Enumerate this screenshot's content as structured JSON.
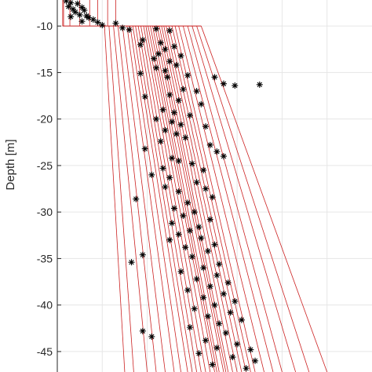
{
  "chart_data": {
    "type": "line",
    "ylabel": "Depth [m]",
    "ylim": [
      -47.2,
      -7.2
    ],
    "y_ticks": [
      -10,
      -15,
      -20,
      -25,
      -30,
      -35,
      -40,
      -45
    ],
    "y_tick_labels": [
      "-10",
      "-15",
      "-20",
      "-25",
      "-30",
      "-35",
      "-40",
      "-45"
    ],
    "grid": true,
    "colors": {
      "profiles": "#cc2222",
      "points": "#000000",
      "grid": "#e6e6e6",
      "axis": "#262626"
    },
    "profiles": {
      "top_layer": {
        "depth_range": [
          -7.2,
          -10
        ],
        "x_left": 0.12,
        "x_right": [
          0.14,
          0.28,
          0.5,
          0.72,
          0.9,
          1.12,
          1.3
        ]
      },
      "break_depth": -10,
      "break_shelf_range": [
        0.12,
        3.2
      ],
      "lower_layer": {
        "depth_range": [
          -10,
          -47.2
        ],
        "x_at_break": [
          1.05,
          1.15,
          1.25,
          1.35,
          1.45,
          1.55,
          1.62,
          1.68,
          1.74,
          1.8,
          1.86,
          1.92,
          1.97,
          2.02,
          2.07,
          2.12,
          2.17,
          2.22,
          2.27,
          2.32,
          2.37,
          2.42,
          2.48,
          2.55,
          2.62,
          2.7,
          2.8,
          2.9,
          3.0,
          3.1,
          3.2
        ],
        "x_at_bottom": [
          1.5,
          1.7,
          2.0,
          2.2,
          2.4,
          2.6,
          2.75,
          2.9,
          3.0,
          3.1,
          3.2,
          3.3,
          3.4,
          3.5,
          3.55,
          3.6,
          3.7,
          3.75,
          3.8,
          3.9,
          4.0,
          4.1,
          4.2,
          4.3,
          4.4,
          4.6,
          4.8,
          5.0,
          5.3,
          5.6,
          6.0
        ]
      }
    },
    "points": [
      {
        "x": 0.2,
        "y": -7.3
      },
      {
        "x": 0.3,
        "y": -7.5
      },
      {
        "x": 0.45,
        "y": -7.6
      },
      {
        "x": 0.25,
        "y": -7.9
      },
      {
        "x": 0.55,
        "y": -8.0
      },
      {
        "x": 0.35,
        "y": -8.2
      },
      {
        "x": 0.6,
        "y": -8.3
      },
      {
        "x": 0.4,
        "y": -8.5
      },
      {
        "x": 0.5,
        "y": -8.8
      },
      {
        "x": 0.65,
        "y": -8.9
      },
      {
        "x": 0.3,
        "y": -9.0
      },
      {
        "x": 0.7,
        "y": -9.1
      },
      {
        "x": 0.8,
        "y": -9.3
      },
      {
        "x": 0.55,
        "y": -9.5
      },
      {
        "x": 0.9,
        "y": -9.6
      },
      {
        "x": 1.0,
        "y": -9.9
      },
      {
        "x": 1.3,
        "y": -9.7
      },
      {
        "x": 1.45,
        "y": -10.2
      },
      {
        "x": 1.6,
        "y": -10.4
      },
      {
        "x": 2.2,
        "y": -10.3
      },
      {
        "x": 2.5,
        "y": -10.5
      },
      {
        "x": 1.9,
        "y": -11.5
      },
      {
        "x": 1.85,
        "y": -12.0
      },
      {
        "x": 2.3,
        "y": -11.8
      },
      {
        "x": 2.4,
        "y": -12.5
      },
      {
        "x": 2.6,
        "y": -12.2
      },
      {
        "x": 2.15,
        "y": -13.5
      },
      {
        "x": 2.25,
        "y": -13.0
      },
      {
        "x": 2.5,
        "y": -13.8
      },
      {
        "x": 2.75,
        "y": -13.2
      },
      {
        "x": 2.2,
        "y": -14.5
      },
      {
        "x": 2.4,
        "y": -14.8
      },
      {
        "x": 2.65,
        "y": -14.2
      },
      {
        "x": 1.85,
        "y": -15.1
      },
      {
        "x": 2.45,
        "y": -15.5
      },
      {
        "x": 2.9,
        "y": -15.3
      },
      {
        "x": 3.5,
        "y": -15.5
      },
      {
        "x": 3.7,
        "y": -16.2
      },
      {
        "x": 3.95,
        "y": -16.4
      },
      {
        "x": 4.5,
        "y": -16.3
      },
      {
        "x": 2.8,
        "y": -16.8
      },
      {
        "x": 3.1,
        "y": -17.0
      },
      {
        "x": 2.5,
        "y": -17.4
      },
      {
        "x": 1.95,
        "y": -17.6
      },
      {
        "x": 2.7,
        "y": -18.0
      },
      {
        "x": 3.2,
        "y": -18.4
      },
      {
        "x": 2.35,
        "y": -19.0
      },
      {
        "x": 2.6,
        "y": -19.3
      },
      {
        "x": 2.95,
        "y": -19.6
      },
      {
        "x": 2.2,
        "y": -20.0
      },
      {
        "x": 2.55,
        "y": -20.3
      },
      {
        "x": 2.75,
        "y": -20.6
      },
      {
        "x": 3.3,
        "y": -20.8
      },
      {
        "x": 2.4,
        "y": -21.2
      },
      {
        "x": 2.65,
        "y": -21.6
      },
      {
        "x": 2.85,
        "y": -22.0
      },
      {
        "x": 2.3,
        "y": -22.4
      },
      {
        "x": 3.4,
        "y": -22.8
      },
      {
        "x": 1.95,
        "y": -23.2
      },
      {
        "x": 3.55,
        "y": -23.5
      },
      {
        "x": 3.7,
        "y": -24.0
      },
      {
        "x": 2.55,
        "y": -24.2
      },
      {
        "x": 2.7,
        "y": -24.5
      },
      {
        "x": 3.0,
        "y": -24.8
      },
      {
        "x": 2.35,
        "y": -25.3
      },
      {
        "x": 3.25,
        "y": -25.5
      },
      {
        "x": 2.1,
        "y": -26.0
      },
      {
        "x": 2.5,
        "y": -26.3
      },
      {
        "x": 3.1,
        "y": -26.8
      },
      {
        "x": 2.4,
        "y": -27.3
      },
      {
        "x": 3.3,
        "y": -27.5
      },
      {
        "x": 2.7,
        "y": -27.8
      },
      {
        "x": 1.75,
        "y": -28.6
      },
      {
        "x": 3.45,
        "y": -28.4
      },
      {
        "x": 2.9,
        "y": -29.0
      },
      {
        "x": 2.6,
        "y": -29.6
      },
      {
        "x": 3.05,
        "y": -30.0
      },
      {
        "x": 2.8,
        "y": -30.4
      },
      {
        "x": 3.4,
        "y": -30.8
      },
      {
        "x": 2.55,
        "y": -31.2
      },
      {
        "x": 3.15,
        "y": -31.6
      },
      {
        "x": 2.95,
        "y": -32.0
      },
      {
        "x": 2.7,
        "y": -32.4
      },
      {
        "x": 3.2,
        "y": -32.8
      },
      {
        "x": 2.5,
        "y": -33.0
      },
      {
        "x": 3.5,
        "y": -33.5
      },
      {
        "x": 2.85,
        "y": -33.8
      },
      {
        "x": 3.35,
        "y": -34.2
      },
      {
        "x": 1.9,
        "y": -34.6
      },
      {
        "x": 3.0,
        "y": -34.8
      },
      {
        "x": 1.65,
        "y": -35.4
      },
      {
        "x": 3.6,
        "y": -35.6
      },
      {
        "x": 3.25,
        "y": -36.0
      },
      {
        "x": 2.75,
        "y": -36.4
      },
      {
        "x": 3.55,
        "y": -36.8
      },
      {
        "x": 3.1,
        "y": -37.2
      },
      {
        "x": 3.8,
        "y": -37.6
      },
      {
        "x": 3.4,
        "y": -38.0
      },
      {
        "x": 2.9,
        "y": -38.4
      },
      {
        "x": 3.7,
        "y": -38.8
      },
      {
        "x": 3.25,
        "y": -39.2
      },
      {
        "x": 3.95,
        "y": -39.6
      },
      {
        "x": 3.5,
        "y": -40.0
      },
      {
        "x": 3.05,
        "y": -40.4
      },
      {
        "x": 3.85,
        "y": -40.8
      },
      {
        "x": 3.35,
        "y": -41.2
      },
      {
        "x": 4.1,
        "y": -41.6
      },
      {
        "x": 3.6,
        "y": -42.0
      },
      {
        "x": 2.95,
        "y": -42.4
      },
      {
        "x": 1.9,
        "y": -42.8
      },
      {
        "x": 3.75,
        "y": -43.0
      },
      {
        "x": 2.1,
        "y": -43.4
      },
      {
        "x": 3.3,
        "y": -43.8
      },
      {
        "x": 4.0,
        "y": -44.2
      },
      {
        "x": 3.55,
        "y": -44.6
      },
      {
        "x": 4.3,
        "y": -44.8
      },
      {
        "x": 3.15,
        "y": -45.2
      },
      {
        "x": 3.9,
        "y": -45.6
      },
      {
        "x": 4.4,
        "y": -46.0
      },
      {
        "x": 3.45,
        "y": -46.4
      },
      {
        "x": 4.2,
        "y": -46.8
      }
    ]
  }
}
